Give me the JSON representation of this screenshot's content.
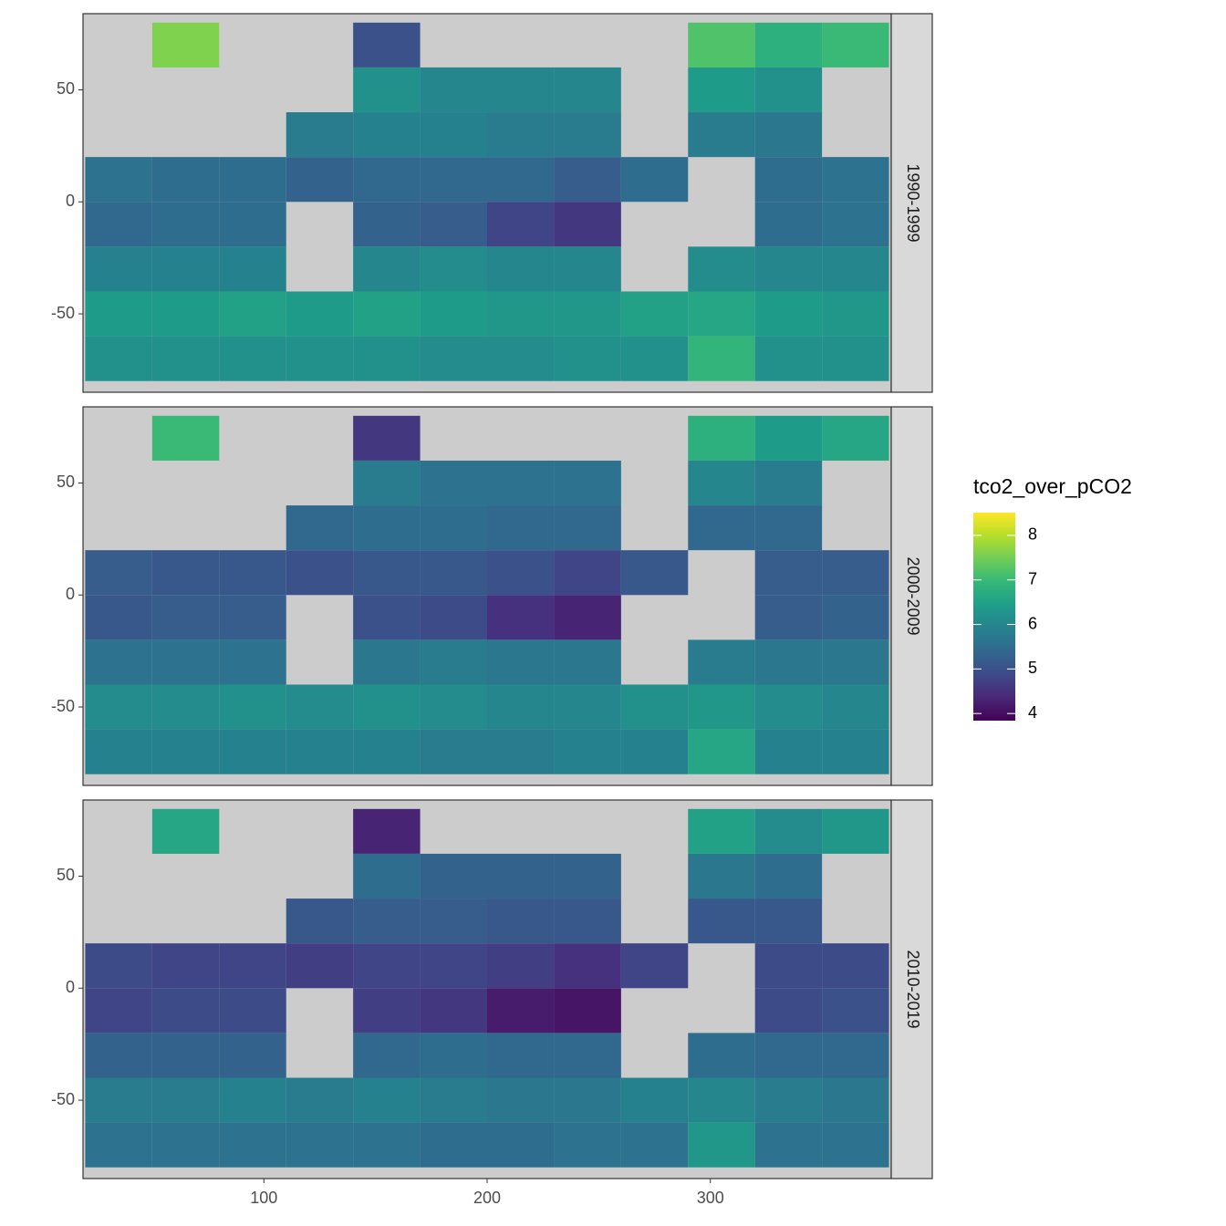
{
  "chart_data": {
    "type": "heatmap",
    "xlim": [
      19,
      381
    ],
    "ylim": [
      -85,
      84
    ],
    "xticks": [
      100,
      200,
      300
    ],
    "yticks": [
      50,
      0,
      -50
    ],
    "lon_edges": [
      20,
      50,
      80,
      110,
      140,
      170,
      200,
      230,
      260,
      290,
      320,
      350,
      380
    ],
    "lat_edges": [
      80,
      60,
      40,
      20,
      0,
      -20,
      -40,
      -60,
      -80
    ],
    "land_color": "#cccccc",
    "facets": [
      {
        "label": "1990-1999",
        "z": [
          [
            null,
            7.6,
            null,
            null,
            5.0,
            null,
            null,
            null,
            null,
            7.2,
            6.8,
            7.0
          ],
          [
            null,
            null,
            null,
            null,
            6.2,
            6.0,
            6.0,
            6.0,
            null,
            6.4,
            6.2,
            null
          ],
          [
            null,
            null,
            null,
            5.8,
            5.9,
            5.9,
            5.8,
            5.8,
            null,
            5.8,
            5.7,
            null
          ],
          [
            5.6,
            5.5,
            5.5,
            5.3,
            5.4,
            5.4,
            5.4,
            5.2,
            5.5,
            null,
            5.5,
            5.6
          ],
          [
            5.4,
            5.5,
            5.5,
            null,
            5.3,
            5.2,
            4.8,
            4.6,
            null,
            null,
            5.5,
            5.6
          ],
          [
            5.9,
            5.9,
            5.9,
            null,
            6.0,
            6.1,
            6.0,
            6.0,
            null,
            6.1,
            6.0,
            6.0
          ],
          [
            6.4,
            6.4,
            6.5,
            6.4,
            6.5,
            6.4,
            6.3,
            6.3,
            6.5,
            6.6,
            6.4,
            6.3
          ],
          [
            6.2,
            6.2,
            6.2,
            6.2,
            6.2,
            6.1,
            6.1,
            6.2,
            6.2,
            6.9,
            6.2,
            6.2
          ]
        ]
      },
      {
        "label": "2000-2009",
        "z": [
          [
            null,
            7.0,
            null,
            null,
            4.6,
            null,
            null,
            null,
            null,
            6.8,
            6.4,
            6.6
          ],
          [
            null,
            null,
            null,
            null,
            5.8,
            5.6,
            5.6,
            5.6,
            null,
            6.0,
            5.8,
            null
          ],
          [
            null,
            null,
            null,
            5.4,
            5.5,
            5.5,
            5.4,
            5.4,
            null,
            5.4,
            5.4,
            null
          ],
          [
            5.2,
            5.1,
            5.1,
            5.0,
            5.1,
            5.1,
            5.0,
            4.8,
            5.1,
            null,
            5.2,
            5.2
          ],
          [
            5.1,
            5.2,
            5.2,
            null,
            5.0,
            4.9,
            4.5,
            4.3,
            null,
            null,
            5.2,
            5.3
          ],
          [
            5.6,
            5.6,
            5.6,
            null,
            5.7,
            5.8,
            5.7,
            5.7,
            null,
            5.8,
            5.7,
            5.7
          ],
          [
            6.1,
            6.1,
            6.2,
            6.1,
            6.2,
            6.1,
            6.0,
            6.0,
            6.2,
            6.3,
            6.1,
            6.0
          ],
          [
            5.9,
            5.9,
            5.9,
            5.9,
            5.9,
            5.8,
            5.8,
            5.9,
            5.9,
            6.6,
            5.9,
            5.9
          ]
        ]
      },
      {
        "label": "2010-2019",
        "z": [
          [
            null,
            6.6,
            null,
            null,
            4.3,
            null,
            null,
            null,
            null,
            6.5,
            6.1,
            6.3
          ],
          [
            null,
            null,
            null,
            null,
            5.5,
            5.3,
            5.3,
            5.3,
            null,
            5.7,
            5.5,
            null
          ],
          [
            null,
            null,
            null,
            5.1,
            5.2,
            5.2,
            5.1,
            5.1,
            null,
            5.1,
            5.1,
            null
          ],
          [
            4.9,
            4.8,
            4.8,
            4.7,
            4.8,
            4.8,
            4.7,
            4.5,
            4.8,
            null,
            4.9,
            4.9
          ],
          [
            4.8,
            4.9,
            4.9,
            null,
            4.7,
            4.6,
            4.2,
            4.1,
            null,
            null,
            4.9,
            5.0
          ],
          [
            5.3,
            5.3,
            5.3,
            null,
            5.4,
            5.5,
            5.4,
            5.4,
            null,
            5.5,
            5.4,
            5.4
          ],
          [
            5.8,
            5.8,
            5.9,
            5.8,
            5.9,
            5.8,
            5.7,
            5.7,
            5.9,
            6.0,
            5.8,
            5.7
          ],
          [
            5.6,
            5.6,
            5.6,
            5.6,
            5.6,
            5.5,
            5.5,
            5.6,
            5.6,
            6.3,
            5.6,
            5.6
          ]
        ]
      }
    ],
    "colorbar": {
      "title": "tco2_over_pCO2",
      "limits": [
        3.84,
        8.51
      ],
      "ticks": [
        4,
        5,
        6,
        7,
        8
      ],
      "palette": [
        "#440154",
        "#482878",
        "#3e4a89",
        "#31688e",
        "#26828e",
        "#1f9e89",
        "#35b779",
        "#6ece58",
        "#b5de2b",
        "#fde725"
      ]
    }
  }
}
